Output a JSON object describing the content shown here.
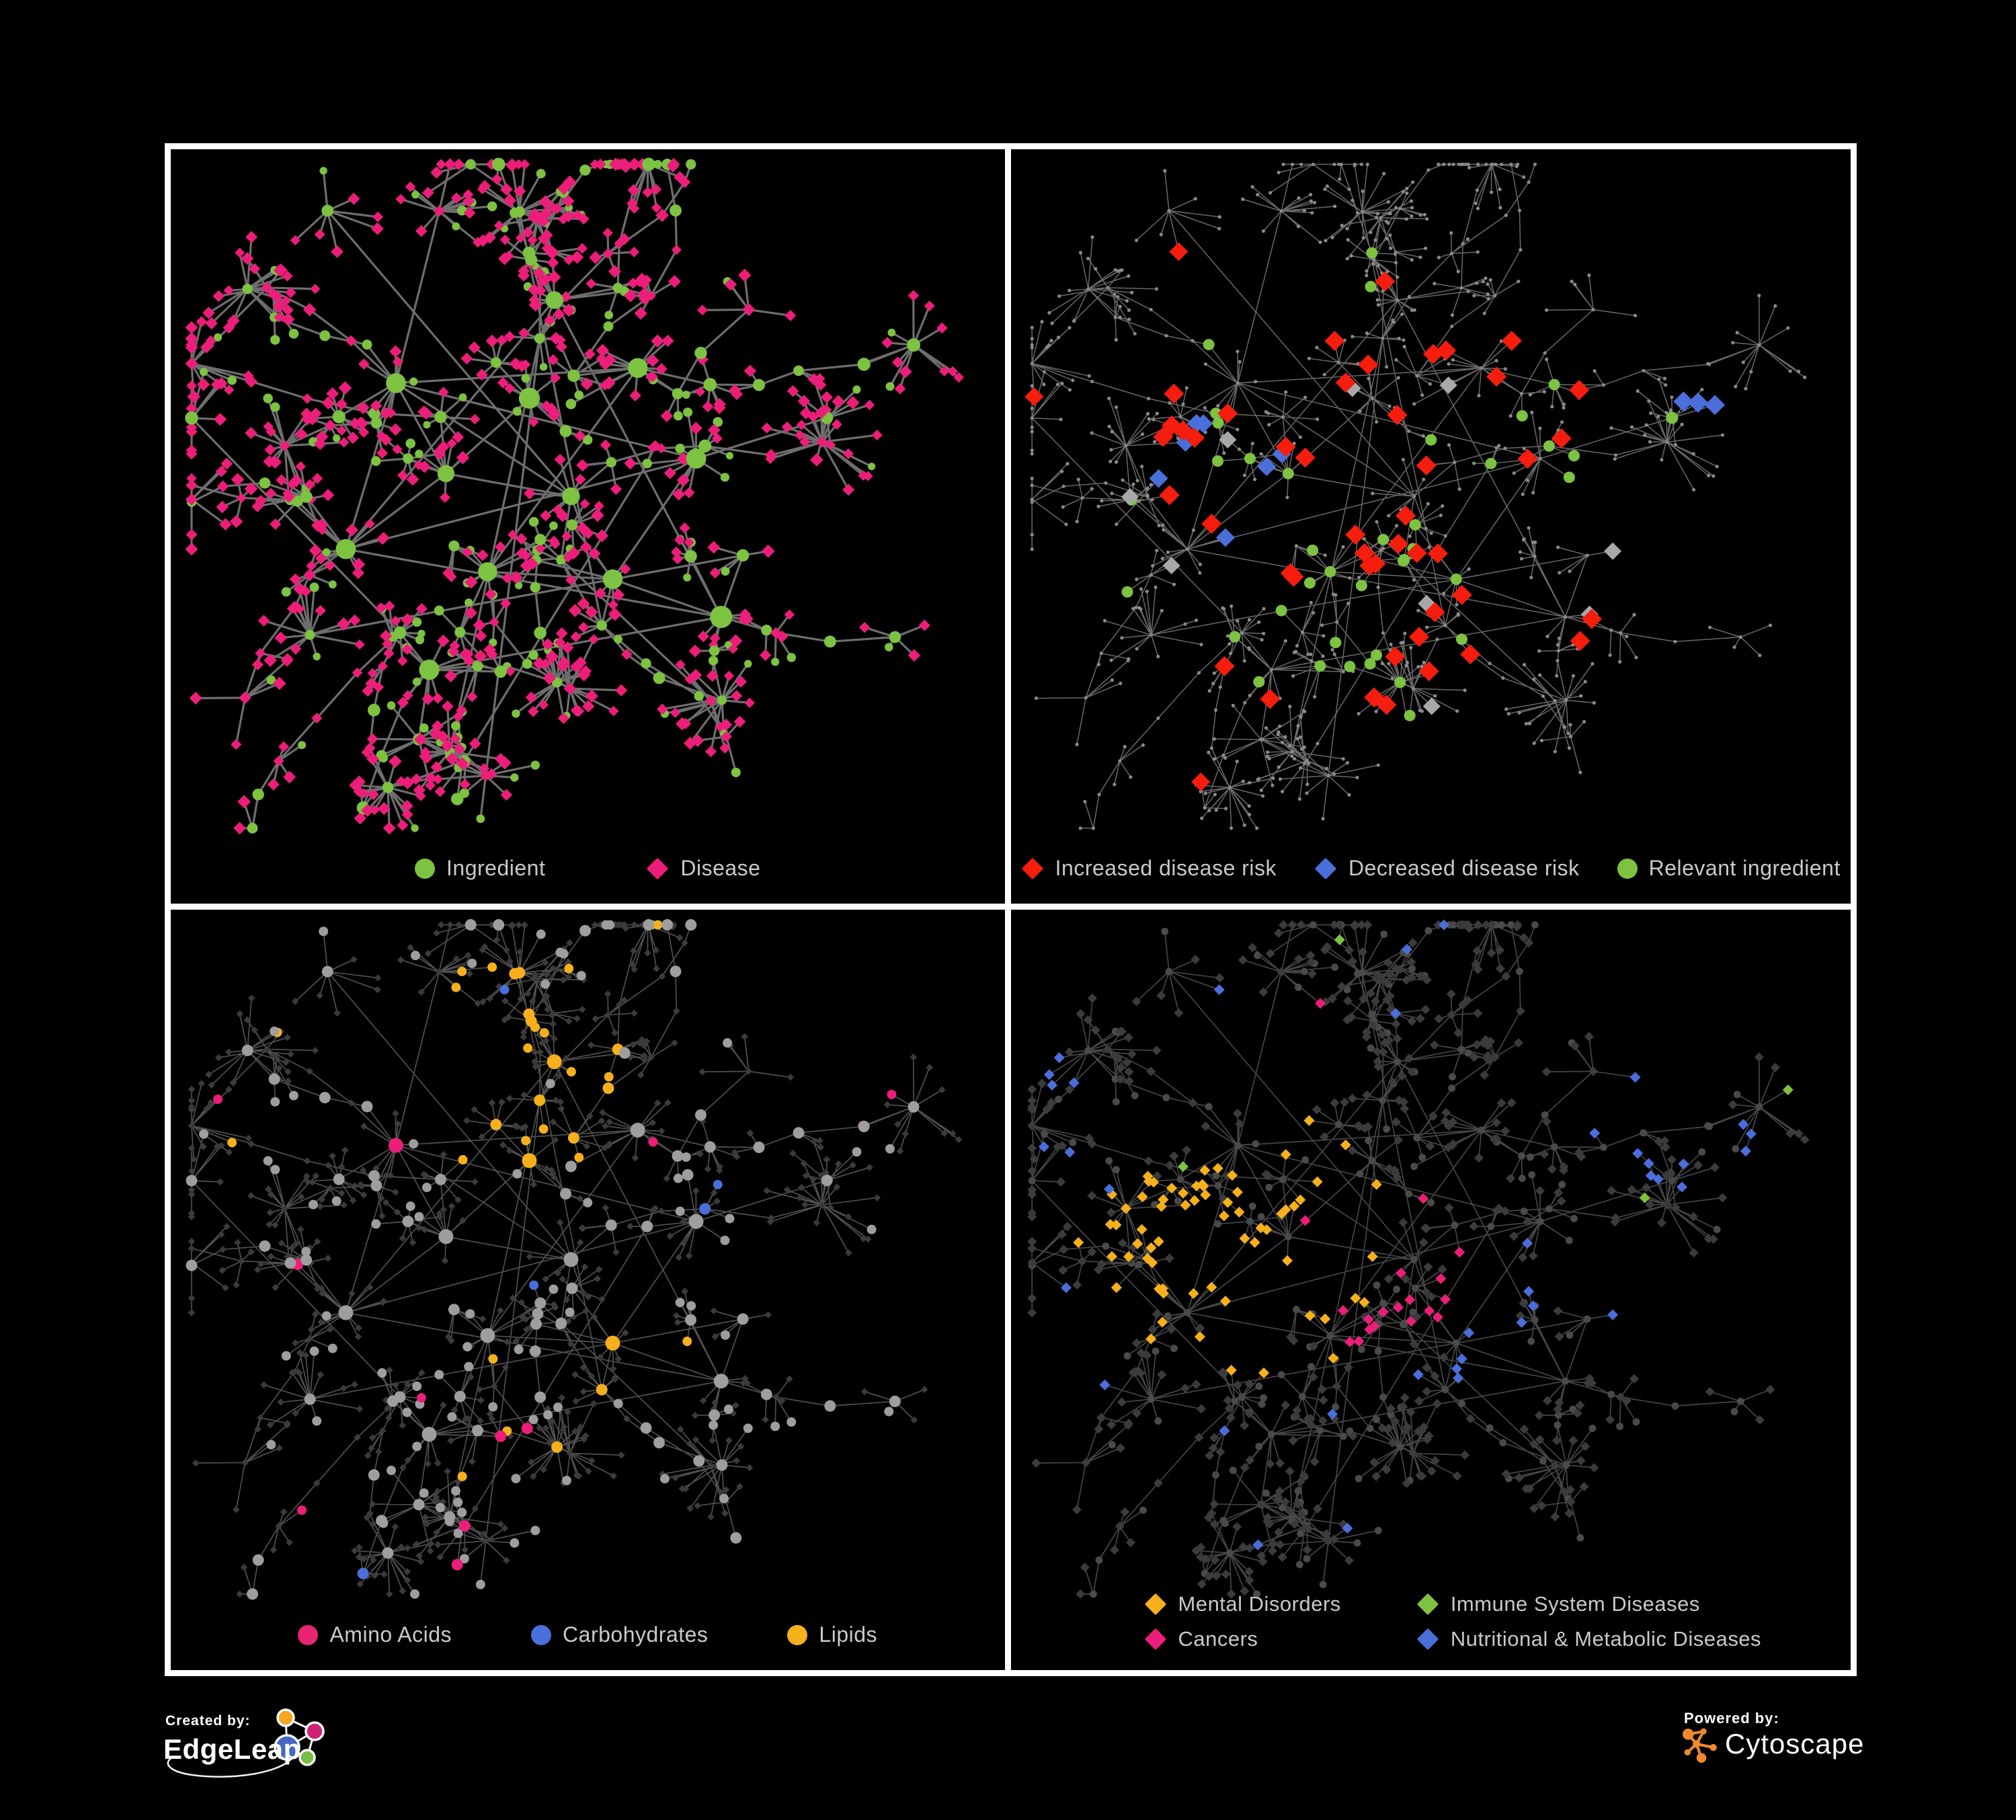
{
  "background": "#000000",
  "frame_color": "#ffffff",
  "legend_text_color": "#c9c9c9",
  "panels": [
    {
      "name": "ingredient-disease-network",
      "legend": [
        {
          "label": "Ingredient",
          "shape": "circle",
          "color": "#7dc241"
        },
        {
          "label": "Disease",
          "shape": "diamond",
          "color": "#ec1e79"
        }
      ]
    },
    {
      "name": "disease-risk-network",
      "legend": [
        {
          "label": "Increased disease risk",
          "shape": "diamond",
          "color": "#f51d0d"
        },
        {
          "label": "Decreased disease risk",
          "shape": "diamond",
          "color": "#4a6fdb"
        },
        {
          "label": "Relevant ingredient",
          "shape": "circle",
          "color": "#7dc241"
        }
      ]
    },
    {
      "name": "ingredient-class-network",
      "legend": [
        {
          "label": "Amino Acids",
          "shape": "circle",
          "color": "#e82573"
        },
        {
          "label": "Carbohydrates",
          "shape": "circle",
          "color": "#4a6fdb"
        },
        {
          "label": "Lipids",
          "shape": "circle",
          "color": "#f6b01c"
        }
      ]
    },
    {
      "name": "disease-class-network",
      "legend": [
        {
          "label": "Mental Disorders",
          "shape": "diamond",
          "color": "#f6b01c"
        },
        {
          "label": "Immune System Diseases",
          "shape": "diamond",
          "color": "#7dc241"
        },
        {
          "label": "Cancers",
          "shape": "diamond",
          "color": "#ec1e79"
        },
        {
          "label": "Nutritional & Metabolic Diseases",
          "shape": "diamond",
          "color": "#4a6fdb"
        }
      ]
    }
  ],
  "network": {
    "green": "#7dc241",
    "pink": "#ec1e79",
    "red": "#f51d0d",
    "blue": "#4a6fdb",
    "amber": "#f6b01c",
    "gray_node": "#9e9e9e",
    "gray_diamond": "#a8a8a8",
    "dim_dot": "#8a8a8a",
    "dark_diamond": "#3b3b3b",
    "dark_circle": "#4a4a4a",
    "edge_colors": [
      "#7a7a7a",
      "#8c8c8c",
      "#a0a0a0",
      "#9a9a9a"
    ]
  },
  "footer": {
    "created_by": "Created by:",
    "brand_left": "EdgeLeap",
    "powered_by": "Powered by:",
    "brand_right": "Cytoscape",
    "edgeleap_colors": {
      "orange": "#f5a623",
      "magenta": "#cf2277",
      "blue": "#4468c4",
      "green": "#76c043"
    },
    "cytoscape_orange": "#ee8a2b"
  }
}
